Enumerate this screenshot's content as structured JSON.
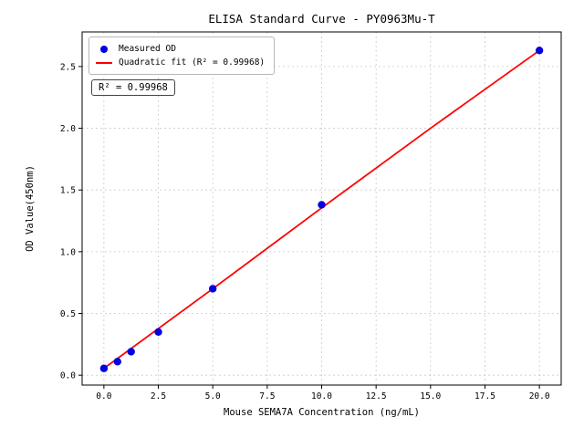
{
  "chart_data": {
    "type": "scatter",
    "title": "ELISA Standard Curve - PY0963Mu-T",
    "xlabel": "Mouse SEMA7A Concentration (ng/mL)",
    "ylabel": "OD Value(450nm)",
    "xlim": [
      -1,
      21
    ],
    "ylim": [
      -0.08,
      2.78
    ],
    "xticks": [
      0,
      2.5,
      5,
      7.5,
      10,
      12.5,
      15,
      17.5,
      20
    ],
    "xtick_labels": [
      "0.0",
      "2.5",
      "5.0",
      "7.5",
      "10.0",
      "12.5",
      "15.0",
      "17.5",
      "20.0"
    ],
    "yticks": [
      0,
      0.5,
      1,
      1.5,
      2,
      2.5
    ],
    "ytick_labels": [
      "0.0",
      "0.5",
      "1.0",
      "1.5",
      "2.0",
      "2.5"
    ],
    "grid": true,
    "legend_position": "upper-left",
    "series": [
      {
        "name": "Measured OD",
        "kind": "scatter",
        "color": "#0000e0",
        "x": [
          0,
          0.625,
          1.25,
          2.5,
          5,
          10,
          20
        ],
        "y": [
          0.055,
          0.11,
          0.19,
          0.35,
          0.7,
          1.38,
          2.63
        ]
      },
      {
        "name": "Quadratic fit (R² = 0.99968)",
        "kind": "line",
        "color": "#ff0000",
        "x": [
          0,
          5,
          10,
          15,
          20
        ],
        "y": [
          0.055,
          0.7,
          1.355,
          2.0,
          2.63
        ]
      }
    ],
    "annotation": "R² = 0.99968"
  }
}
